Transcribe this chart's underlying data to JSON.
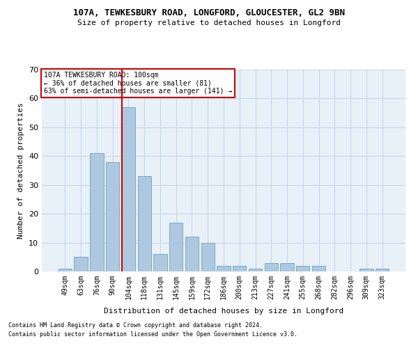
{
  "title1": "107A, TEWKESBURY ROAD, LONGFORD, GLOUCESTER, GL2 9BN",
  "title2": "Size of property relative to detached houses in Longford",
  "xlabel": "Distribution of detached houses by size in Longford",
  "ylabel": "Number of detached properties",
  "categories": [
    "49sqm",
    "63sqm",
    "76sqm",
    "90sqm",
    "104sqm",
    "118sqm",
    "131sqm",
    "145sqm",
    "159sqm",
    "172sqm",
    "186sqm",
    "200sqm",
    "213sqm",
    "227sqm",
    "241sqm",
    "255sqm",
    "268sqm",
    "282sqm",
    "296sqm",
    "309sqm",
    "323sqm"
  ],
  "values": [
    1,
    5,
    41,
    38,
    57,
    33,
    6,
    17,
    12,
    10,
    2,
    2,
    1,
    3,
    3,
    2,
    2,
    0,
    0,
    1,
    1
  ],
  "bar_color": "#adc8df",
  "bar_edge_color": "#7aaac8",
  "vline_color": "#cc0000",
  "annotation_lines": [
    "107A TEWKESBURY ROAD: 100sqm",
    "← 36% of detached houses are smaller (81)",
    "63% of semi-detached houses are larger (141) →"
  ],
  "annotation_box_color": "#ffffff",
  "annotation_box_edge_color": "#cc0000",
  "grid_color": "#c8d8e8",
  "bg_color": "#e8f0f8",
  "ylim": [
    0,
    70
  ],
  "yticks": [
    0,
    10,
    20,
    30,
    40,
    50,
    60,
    70
  ],
  "footnote1": "Contains HM Land Registry data © Crown copyright and database right 2024.",
  "footnote2": "Contains public sector information licensed under the Open Government Licence v3.0."
}
